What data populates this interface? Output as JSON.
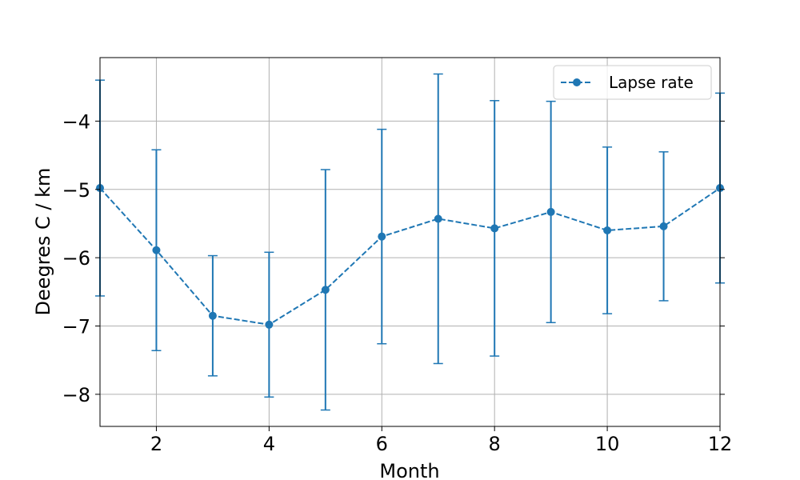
{
  "chart_data": {
    "type": "line",
    "title": "",
    "xlabel": "Month",
    "ylabel": "Deegres C / km",
    "xlim": [
      1,
      12
    ],
    "ylim": [
      -8.47,
      -3.07
    ],
    "x_ticks": [
      2,
      4,
      6,
      8,
      10,
      12
    ],
    "y_ticks": [
      -8,
      -7,
      -6,
      -5,
      -4
    ],
    "x_tick_labels": [
      "2",
      "4",
      "6",
      "8",
      "10",
      "12"
    ],
    "y_tick_labels": [
      "−8",
      "−7",
      "−6",
      "−5",
      "−4"
    ],
    "grid": true,
    "legend_position": "top-right",
    "series": [
      {
        "name": "Lapse rate",
        "color": "#1f77b4",
        "line_style": "dashed",
        "marker": "circle",
        "x": [
          1,
          2,
          3,
          4,
          5,
          6,
          7,
          8,
          9,
          10,
          11,
          12
        ],
        "y": [
          -4.98,
          -5.89,
          -6.85,
          -6.98,
          -6.47,
          -5.69,
          -5.43,
          -5.57,
          -5.33,
          -5.6,
          -5.54,
          -4.98
        ],
        "error": [
          1.58,
          1.47,
          0.88,
          1.06,
          1.76,
          1.57,
          2.12,
          1.87,
          1.62,
          1.22,
          1.09,
          1.39
        ]
      }
    ]
  }
}
